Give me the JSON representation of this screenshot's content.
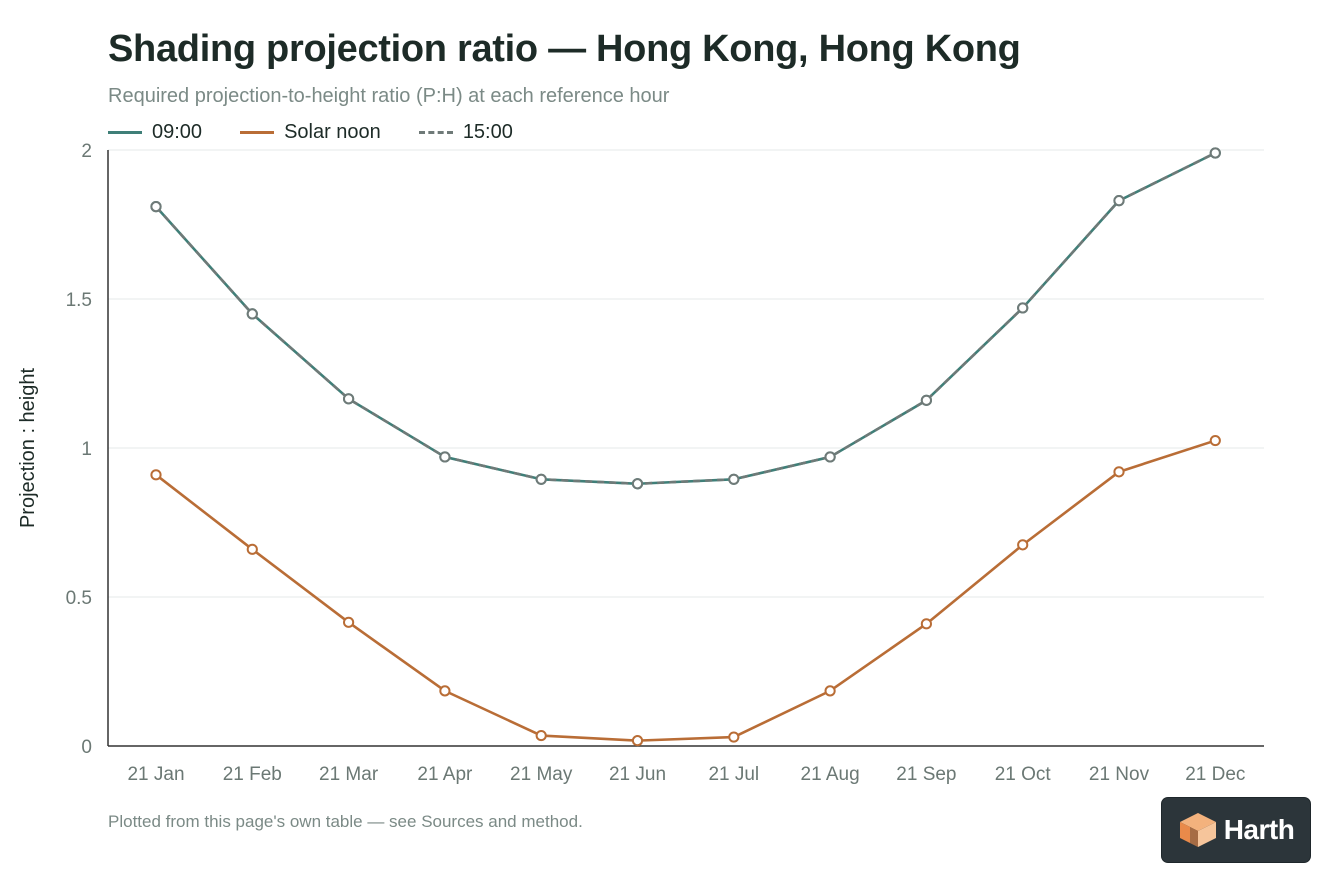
{
  "title": "Shading projection ratio — Hong Kong, Hong Kong",
  "subtitle": "Required projection-to-height ratio (P:H) at each reference hour",
  "footnote": "Plotted from this page's own table — see Sources and method.",
  "logo": {
    "text": "Harth",
    "icon": "harth-cube-logo-icon"
  },
  "colors": {
    "am": "#3f7f78",
    "noon": "#b96d36",
    "pm": "#6f7a78",
    "axis": "#333333",
    "grid": "#e6e9e8",
    "tick_label": "#6b7874"
  },
  "chart_data": {
    "type": "line",
    "ylabel": "Projection : height",
    "xlabel": "",
    "ylim": [
      0,
      2
    ],
    "yticks": [
      0,
      0.5,
      1,
      1.5,
      2
    ],
    "ytick_labels": [
      "0",
      "0.5",
      "1",
      "1.5",
      "2"
    ],
    "categories": [
      "21 Jan",
      "21 Feb",
      "21 Mar",
      "21 Apr",
      "21 May",
      "21 Jun",
      "21 Jul",
      "21 Aug",
      "21 Sep",
      "21 Oct",
      "21 Nov",
      "21 Dec"
    ],
    "grid": true,
    "legend_position": "top-left",
    "series": [
      {
        "name": "09:00",
        "color": "#3f7f78",
        "dash": false,
        "values": [
          1.81,
          1.45,
          1.165,
          0.97,
          0.895,
          0.88,
          0.895,
          0.97,
          1.16,
          1.47,
          1.83,
          1.99
        ]
      },
      {
        "name": "Solar noon",
        "color": "#b96d36",
        "dash": false,
        "values": [
          0.91,
          0.66,
          0.415,
          0.185,
          0.035,
          0.018,
          0.03,
          0.185,
          0.41,
          0.675,
          0.92,
          1.025
        ]
      },
      {
        "name": "15:00",
        "color": "#6f7a78",
        "dash": true,
        "values": [
          1.81,
          1.45,
          1.165,
          0.97,
          0.895,
          0.88,
          0.895,
          0.97,
          1.16,
          1.47,
          1.83,
          1.99
        ]
      }
    ]
  }
}
